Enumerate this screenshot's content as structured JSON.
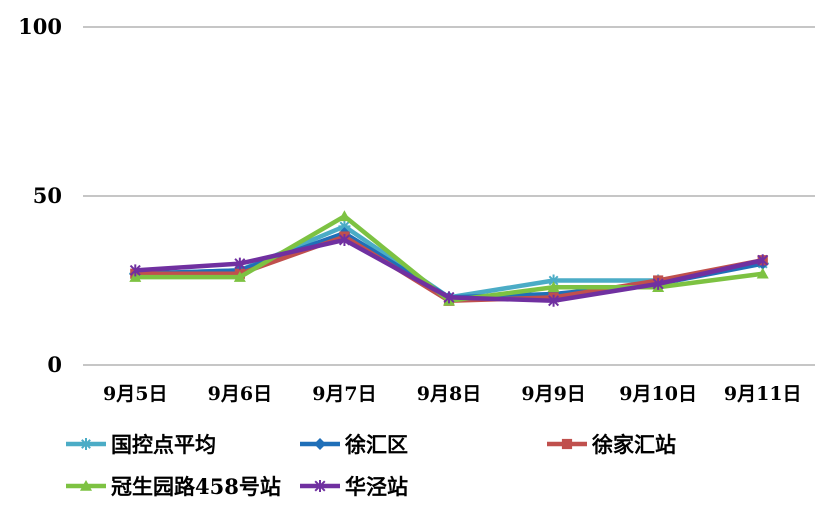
{
  "chart_data": {
    "type": "line",
    "title": "",
    "xlabel": "",
    "ylabel": "",
    "ylim": [
      0,
      100
    ],
    "yticks": [
      0,
      50,
      100
    ],
    "grid": true,
    "legend_position": "bottom",
    "categories": [
      "9月5日",
      "9月6日",
      "9月7日",
      "9月8日",
      "9月9日",
      "9月10日",
      "9月11日"
    ],
    "series": [
      {
        "name": "国控点平均",
        "color": "#4BACC6",
        "marker": "star",
        "values": [
          27,
          28,
          41,
          20,
          25,
          25,
          30
        ]
      },
      {
        "name": "徐汇区",
        "color": "#1F6FB8",
        "marker": "diamond",
        "values": [
          27,
          28,
          39,
          20,
          21,
          24,
          30
        ]
      },
      {
        "name": "徐家汇站",
        "color": "#C0504D",
        "marker": "square",
        "values": [
          27,
          27,
          38,
          19,
          20,
          25,
          31
        ]
      },
      {
        "name": "冠生园路458号站",
        "color": "#7DC242",
        "marker": "triangle",
        "values": [
          26,
          26,
          44,
          19,
          23,
          23,
          27
        ]
      },
      {
        "name": "华泾站",
        "color": "#7030A0",
        "marker": "asterisk",
        "values": [
          28,
          30,
          37,
          20,
          19,
          24,
          31
        ]
      }
    ]
  }
}
